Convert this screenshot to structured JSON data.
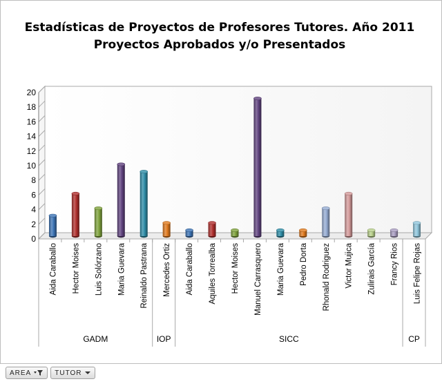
{
  "chart_data": {
    "type": "bar",
    "title_lines": [
      "Estadísticas  de Proyectos  de Profesores Tutores.  Año 2011",
      "Proyectos  Aprobados  y/o  Presentados"
    ],
    "ylim": [
      0,
      20
    ],
    "yticks": [
      0,
      2,
      4,
      6,
      8,
      10,
      12,
      14,
      16,
      18,
      20
    ],
    "categories": [
      "Aida Caraballo",
      "Hector Moises",
      "Luis Solórzano",
      "Maria Guevara",
      "Reinaldo Pastrana",
      "Mercedes Ortiz",
      "Aida Caraballo",
      "Aquiles Torrealba",
      "Hector Moises",
      "Manuel Carrasquero",
      "Maria Guevara",
      "Pedro Dorta",
      "Rhonald Rodriguez",
      "Victor Mujica",
      "Zulirais García",
      "Francy Rios",
      "Luis Felipe Rojas"
    ],
    "values": [
      3,
      6,
      4,
      10,
      9,
      2,
      1,
      2,
      1,
      19,
      1,
      1,
      4,
      6,
      1,
      1,
      2
    ],
    "groups": [
      {
        "label": "GADM",
        "count": 5
      },
      {
        "label": "IOP",
        "count": 1
      },
      {
        "label": "SICC",
        "count": 10
      },
      {
        "label": "CP",
        "count": 1
      }
    ],
    "colors": [
      "#3d74b5",
      "#b0302e",
      "#7fa33c",
      "#614480",
      "#2f8ea8",
      "#e07a1e",
      "#3d74b5",
      "#b0302e",
      "#7fa33c",
      "#614480",
      "#2f8ea8",
      "#e07a1e",
      "#96acd3",
      "#d49a9a",
      "#b9d18c",
      "#aa9ec2",
      "#90c6dc"
    ],
    "grid": false,
    "legend": "none"
  },
  "pivot_fields": [
    {
      "label": "AREA",
      "icon": "filter-dropdown-icon"
    },
    {
      "label": "TUTOR",
      "icon": "dropdown-arrow-icon"
    }
  ]
}
